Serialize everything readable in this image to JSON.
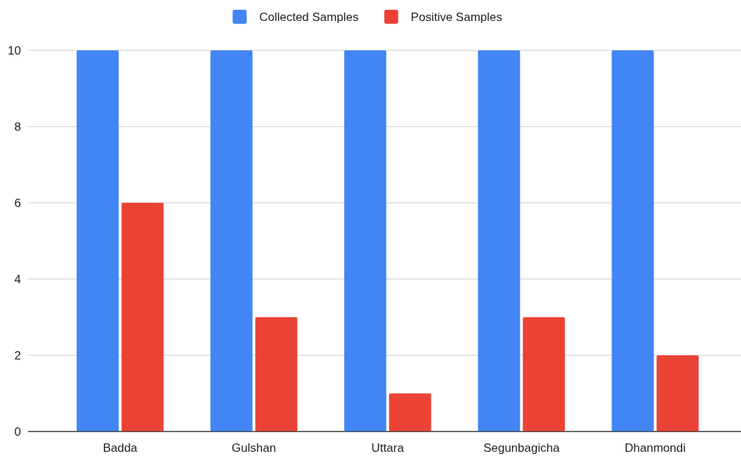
{
  "chart_data": {
    "type": "bar",
    "categories": [
      "Badda",
      "Gulshan",
      "Uttara",
      "Segunbagicha",
      "Dhanmondi"
    ],
    "series": [
      {
        "name": "Collected Samples",
        "color": "#4285f4",
        "values": [
          10,
          10,
          10,
          10,
          10
        ]
      },
      {
        "name": "Positive Samples",
        "color": "#ea4335",
        "values": [
          6,
          3,
          1,
          3,
          2
        ]
      }
    ],
    "ylim": [
      0,
      10
    ],
    "yticks": [
      0,
      2,
      4,
      6,
      8,
      10
    ],
    "grid": "y",
    "legend": "top"
  }
}
